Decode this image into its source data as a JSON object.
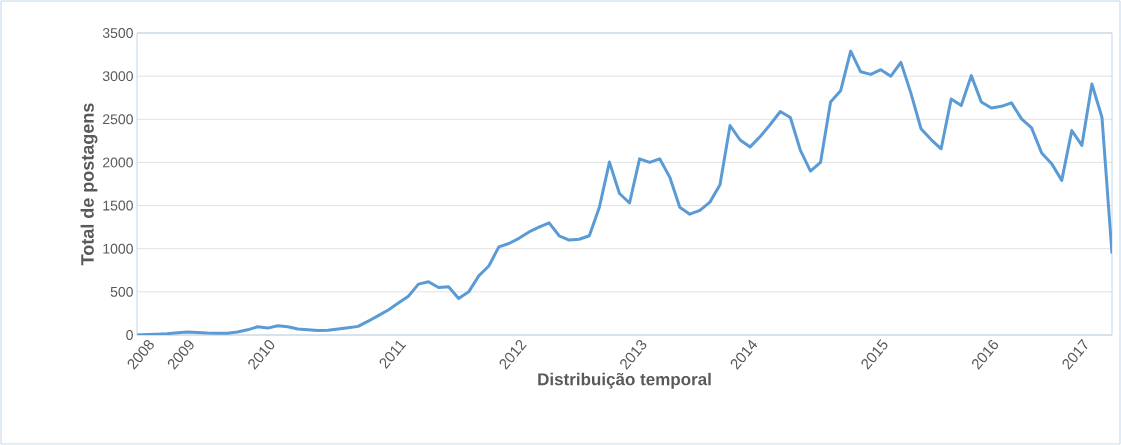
{
  "chart_data": {
    "type": "line",
    "xlabel": "Distribuição temporal",
    "ylabel": "Total de postagens",
    "categories": [
      null,
      "2008",
      null,
      null,
      null,
      "2009",
      null,
      null,
      null,
      null,
      null,
      null,
      null,
      "2010",
      null,
      null,
      null,
      null,
      null,
      null,
      null,
      null,
      null,
      null,
      null,
      null,
      "2011",
      null,
      null,
      null,
      null,
      null,
      null,
      null,
      null,
      null,
      null,
      null,
      "2012",
      null,
      null,
      null,
      null,
      null,
      null,
      null,
      null,
      null,
      null,
      null,
      "2013",
      null,
      null,
      null,
      null,
      null,
      null,
      null,
      null,
      null,
      null,
      "2014",
      null,
      null,
      null,
      null,
      null,
      null,
      null,
      null,
      null,
      null,
      null,
      null,
      "2015",
      null,
      null,
      null,
      null,
      null,
      null,
      null,
      null,
      null,
      null,
      "2016",
      null,
      null,
      null,
      null,
      null,
      null,
      null,
      null,
      "2017",
      null,
      null,
      null
    ],
    "values": [
      0,
      5,
      10,
      15,
      25,
      35,
      28,
      22,
      20,
      20,
      35,
      60,
      96,
      80,
      108,
      95,
      70,
      60,
      52,
      55,
      70,
      85,
      100,
      160,
      225,
      290,
      370,
      450,
      590,
      617,
      550,
      560,
      424,
      500,
      685,
      800,
      1021,
      1060,
      1120,
      1195,
      1250,
      1300,
      1150,
      1100,
      1110,
      1150,
      1480,
      2004,
      1640,
      1530,
      2042,
      2000,
      2042,
      1830,
      1480,
      1400,
      1445,
      1540,
      1740,
      2428,
      2260,
      2180,
      2300,
      2440,
      2590,
      2520,
      2139,
      1900,
      2000,
      2700,
      2830,
      3290,
      3050,
      3020,
      3075,
      3000,
      3160,
      2800,
      2390,
      2265,
      2158,
      2736,
      2659,
      3006,
      2700,
      2630,
      2650,
      2690,
      2505,
      2400,
      2110,
      1985,
      1792,
      2370,
      2197,
      2909,
      2524,
      944
    ],
    "color": "#5b9bd5",
    "ylim": [
      0,
      3500
    ],
    "yticks": [
      0,
      500,
      1000,
      1500,
      2000,
      2500,
      3000,
      3500
    ],
    "grid": "y"
  }
}
